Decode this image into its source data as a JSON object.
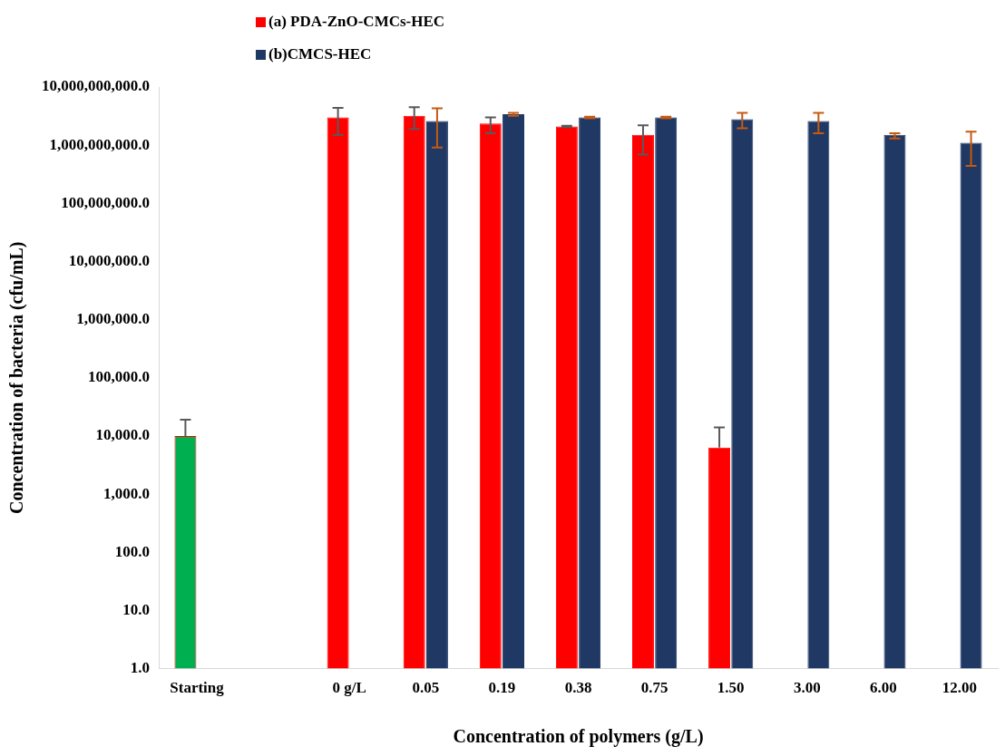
{
  "chart_data": {
    "type": "bar",
    "xlabel": "Concentration of polymers (g/L)",
    "ylabel": "Concentration of bacteria (cfu/mL)",
    "categories": [
      "Starting",
      null,
      "0 g/L",
      "0.05",
      "0.19",
      "0.38",
      "0.75",
      "1.50",
      "3.00",
      "6.00",
      "12.00"
    ],
    "series": [
      {
        "name": "(a) PDA-ZnO-CMCs-HEC",
        "color": "#ff0000",
        "colors": [
          "#00b050",
          "#ff0000",
          "#ff0000",
          "#ff0000",
          "#ff0000",
          "#ff0000",
          "#ff0000",
          "#ff0000",
          "#ff0000",
          "#ff0000",
          "#ff0000"
        ],
        "values": [
          10000,
          null,
          3000000000,
          3200000000,
          2350000000,
          2100000000,
          1500000000,
          6300,
          null,
          null,
          null
        ],
        "errors": [
          [
            10000,
            19000
          ],
          null,
          [
            1500000000,
            4400000000
          ],
          [
            1900000000,
            4500000000
          ],
          [
            1600000000,
            3000000000
          ],
          [
            2050000000,
            2150000000
          ],
          [
            690000000,
            2200000000
          ],
          [
            6300,
            14000
          ],
          null,
          null,
          null
        ]
      },
      {
        "name": "(b)CMCS-HEC",
        "color": "#203864",
        "values": [
          null,
          null,
          null,
          2600000000,
          3400000000,
          3000000000,
          3000000000,
          2800000000,
          2600000000,
          1500000000,
          1100000000
        ],
        "errors": [
          null,
          null,
          null,
          [
            910000000,
            4300000000
          ],
          [
            3200000000,
            3600000000
          ],
          [
            2900000000,
            3100000000
          ],
          [
            2900000000,
            3100000000
          ],
          [
            1960000000,
            3600000000
          ],
          [
            1600000000,
            3600000000
          ],
          [
            1300000000,
            1600000000
          ],
          [
            440000000,
            1700000000
          ]
        ]
      }
    ],
    "log": "y",
    "ylim": [
      1,
      10000000000
    ],
    "yticks": [
      {
        "value": 1,
        "label": "1.0"
      },
      {
        "value": 10,
        "label": "10.0"
      },
      {
        "value": 100,
        "label": "100.0"
      },
      {
        "value": 1000,
        "label": "1,000.0"
      },
      {
        "value": 10000,
        "label": "10,000.0"
      },
      {
        "value": 100000,
        "label": "100,000.0"
      },
      {
        "value": 1000000,
        "label": "1,000,000.0"
      },
      {
        "value": 10000000,
        "label": "10,000,000.0"
      },
      {
        "value": 100000000,
        "label": "100,000,000.0"
      },
      {
        "value": 1000000000,
        "label": "1,000,000,000.0"
      },
      {
        "value": 10000000000,
        "label": "10,000,000,000.0"
      }
    ],
    "grid": false,
    "legend": "top left"
  }
}
